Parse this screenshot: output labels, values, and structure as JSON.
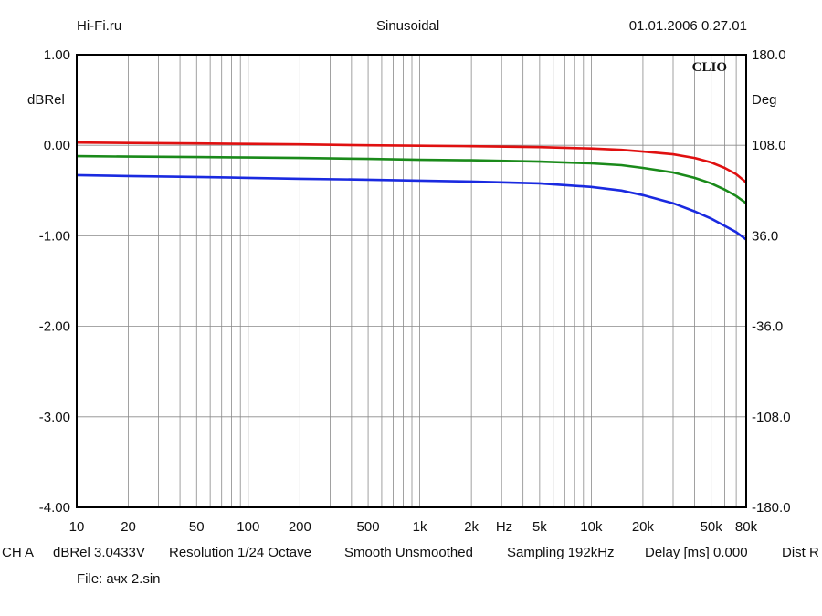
{
  "header": {
    "left": "Hi-Fi.ru",
    "center": "Sinusoidal",
    "right": "01.01.2006 0.27.01"
  },
  "brand": "CLIO",
  "footer": {
    "channel": "CH A",
    "units": "dBRel 3.0433V",
    "resolution": "Resolution 1/24 Octave",
    "smooth": "Smooth Unsmoothed",
    "sampling": "Sampling 192kHz",
    "delay": "Delay [ms] 0.000",
    "dist": "Dist R",
    "file_label": "File:",
    "file_name": "ачх 2.sin"
  },
  "chart_data": {
    "type": "line",
    "x_scale": "log",
    "xlim": [
      10,
      80000
    ],
    "ylim": [
      -4,
      1
    ],
    "y2lim": [
      -180,
      180
    ],
    "ylabel": "dBRel",
    "y2label": "Deg",
    "xunit": "Hz",
    "x_ticks": [
      {
        "value": 10,
        "label": "10"
      },
      {
        "value": 20,
        "label": "20"
      },
      {
        "value": 50,
        "label": "50"
      },
      {
        "value": 100,
        "label": "100"
      },
      {
        "value": 200,
        "label": "200"
      },
      {
        "value": 500,
        "label": "500"
      },
      {
        "value": 1000,
        "label": "1k"
      },
      {
        "value": 2000,
        "label": "2k"
      },
      {
        "value": 5000,
        "label": "5k"
      },
      {
        "value": 10000,
        "label": "10k"
      },
      {
        "value": 20000,
        "label": "20k"
      },
      {
        "value": 50000,
        "label": "50k"
      },
      {
        "value": 80000,
        "label": "80k"
      }
    ],
    "y_ticks": [
      {
        "value": 1,
        "label": "1.00"
      },
      {
        "value": 0,
        "label": "0.00"
      },
      {
        "value": -1,
        "label": "-1.00"
      },
      {
        "value": -2,
        "label": "-2.00"
      },
      {
        "value": -3,
        "label": "-3.00"
      },
      {
        "value": -4,
        "label": "-4.00"
      }
    ],
    "y2_ticks": [
      {
        "value": 180,
        "label": "180.0"
      },
      {
        "value": 108,
        "label": "108.0"
      },
      {
        "value": 36,
        "label": "36.0"
      },
      {
        "value": -36,
        "label": "-36.0"
      },
      {
        "value": -108,
        "label": "-108.0"
      },
      {
        "value": -180,
        "label": "-180.0"
      }
    ],
    "grid": true,
    "series": [
      {
        "color": "#e01010",
        "x": [
          10,
          20,
          50,
          100,
          200,
          500,
          1000,
          2000,
          5000,
          10000,
          15000,
          20000,
          30000,
          40000,
          50000,
          60000,
          70000,
          80000
        ],
        "y": [
          0.03,
          0.025,
          0.02,
          0.015,
          0.01,
          0.0,
          -0.005,
          -0.01,
          -0.02,
          -0.035,
          -0.05,
          -0.07,
          -0.1,
          -0.14,
          -0.19,
          -0.25,
          -0.32,
          -0.41
        ]
      },
      {
        "color": "#1a8a1a",
        "x": [
          10,
          20,
          50,
          100,
          200,
          500,
          1000,
          2000,
          5000,
          10000,
          15000,
          20000,
          30000,
          40000,
          50000,
          60000,
          70000,
          80000
        ],
        "y": [
          -0.12,
          -0.125,
          -0.13,
          -0.135,
          -0.14,
          -0.15,
          -0.16,
          -0.165,
          -0.18,
          -0.2,
          -0.22,
          -0.25,
          -0.3,
          -0.36,
          -0.42,
          -0.49,
          -0.56,
          -0.64
        ]
      },
      {
        "color": "#1a2ae0",
        "x": [
          10,
          20,
          50,
          100,
          200,
          500,
          1000,
          2000,
          5000,
          10000,
          15000,
          20000,
          30000,
          40000,
          50000,
          60000,
          70000,
          80000
        ],
        "y": [
          -0.33,
          -0.34,
          -0.35,
          -0.36,
          -0.37,
          -0.38,
          -0.39,
          -0.4,
          -0.42,
          -0.46,
          -0.5,
          -0.55,
          -0.64,
          -0.73,
          -0.81,
          -0.89,
          -0.96,
          -1.04
        ]
      }
    ]
  }
}
